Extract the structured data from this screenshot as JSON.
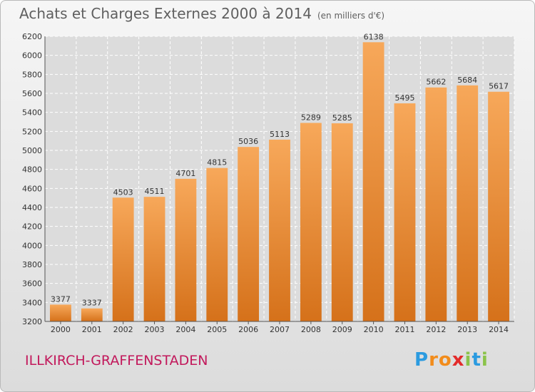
{
  "header": {
    "title": "Achats et Charges Externes 2000 à 2014",
    "subtitle": "(en milliers d'€)"
  },
  "footer": {
    "town": "ILLKIRCH-GRAFFENSTADEN",
    "logo": [
      "P",
      "r",
      "o",
      "x",
      "i",
      "t",
      "i"
    ],
    "logo_colors": [
      "#2b9be0",
      "#f28c1b",
      "#f28c1b",
      "#e32b2b",
      "#8bc34a",
      "#2b9be0",
      "#8bc34a"
    ]
  },
  "colors": {
    "bar_top": "#f7a85a",
    "bar_bottom": "#d5711a",
    "grid": "#ffffff",
    "plot_bg": "#dcdcdc"
  },
  "chart_data": {
    "type": "bar",
    "categories": [
      "2000",
      "2001",
      "2002",
      "2003",
      "2004",
      "2005",
      "2006",
      "2007",
      "2008",
      "2009",
      "2010",
      "2011",
      "2012",
      "2013",
      "2014"
    ],
    "values": [
      3377,
      3337,
      4503,
      4511,
      4701,
      4815,
      5036,
      5113,
      5289,
      5285,
      6138,
      5495,
      5662,
      5684,
      5617
    ],
    "value_labels": [
      "3377",
      "3337",
      "4503",
      "4511",
      "4701",
      "4815",
      "5036",
      "5113",
      "5289",
      "5285",
      "6138",
      "5495",
      "5662",
      "5684",
      "5617"
    ],
    "ylim": [
      3200,
      6200
    ],
    "yticks": [
      "3200",
      "3400",
      "3600",
      "3800",
      "4000",
      "4200",
      "4400",
      "4600",
      "4800",
      "5000",
      "5200",
      "5400",
      "5600",
      "5800",
      "6000",
      "6200"
    ],
    "grid": true
  }
}
